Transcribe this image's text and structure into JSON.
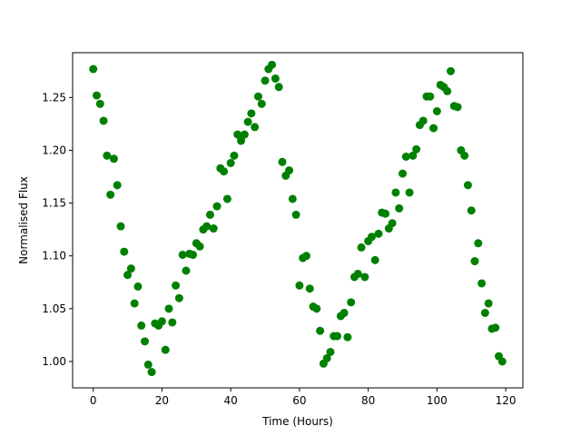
{
  "chart_data": {
    "type": "scatter",
    "title": "",
    "xlabel": "Time (Hours)",
    "ylabel": "Normalised Flux",
    "xlim": [
      -6,
      125
    ],
    "ylim": [
      0.975,
      1.2925
    ],
    "x_ticks": [
      0,
      20,
      40,
      60,
      80,
      100,
      120
    ],
    "x_tick_labels": [
      "0",
      "20",
      "40",
      "60",
      "80",
      "100",
      "120"
    ],
    "y_ticks": [
      1.0,
      1.05,
      1.1,
      1.15,
      1.2,
      1.25
    ],
    "y_tick_labels": [
      "1.00",
      "1.05",
      "1.10",
      "1.15",
      "1.20",
      "1.25"
    ],
    "grid": false,
    "legend": false,
    "marker_color": "#008000",
    "series": [
      {
        "points": [
          [
            0,
            1.277
          ],
          [
            1,
            1.252
          ],
          [
            2,
            1.244
          ],
          [
            3,
            1.228
          ],
          [
            4,
            1.195
          ],
          [
            5,
            1.158
          ],
          [
            6,
            1.192
          ],
          [
            7,
            1.167
          ],
          [
            8,
            1.128
          ],
          [
            9,
            1.104
          ],
          [
            10,
            1.082
          ],
          [
            11,
            1.088
          ],
          [
            12,
            1.055
          ],
          [
            13,
            1.071
          ],
          [
            14,
            1.034
          ],
          [
            15,
            1.019
          ],
          [
            16,
            0.997
          ],
          [
            17,
            0.99
          ],
          [
            18,
            1.036
          ],
          [
            19,
            1.034
          ],
          [
            20,
            1.038
          ],
          [
            21,
            1.011
          ],
          [
            22,
            1.05
          ],
          [
            23,
            1.037
          ],
          [
            24,
            1.072
          ],
          [
            25,
            1.06
          ],
          [
            26,
            1.101
          ],
          [
            27,
            1.086
          ],
          [
            28,
            1.102
          ],
          [
            29,
            1.101
          ],
          [
            30,
            1.112
          ],
          [
            31,
            1.109
          ],
          [
            32,
            1.125
          ],
          [
            33,
            1.128
          ],
          [
            34,
            1.139
          ],
          [
            35,
            1.126
          ],
          [
            36,
            1.147
          ],
          [
            37,
            1.183
          ],
          [
            38,
            1.18
          ],
          [
            39,
            1.154
          ],
          [
            40,
            1.188
          ],
          [
            41,
            1.195
          ],
          [
            42,
            1.215
          ],
          [
            43,
            1.209
          ],
          [
            44,
            1.215
          ],
          [
            45,
            1.227
          ],
          [
            46,
            1.235
          ],
          [
            47,
            1.222
          ],
          [
            48,
            1.251
          ],
          [
            49,
            1.244
          ],
          [
            50,
            1.266
          ],
          [
            51,
            1.277
          ],
          [
            52,
            1.281
          ],
          [
            53,
            1.268
          ],
          [
            54,
            1.26
          ],
          [
            55,
            1.189
          ],
          [
            56,
            1.176
          ],
          [
            57,
            1.181
          ],
          [
            58,
            1.154
          ],
          [
            59,
            1.139
          ],
          [
            60,
            1.072
          ],
          [
            61,
            1.098
          ],
          [
            62,
            1.1
          ],
          [
            63,
            1.069
          ],
          [
            64,
            1.052
          ],
          [
            65,
            1.05
          ],
          [
            66,
            1.029
          ],
          [
            67,
            0.998
          ],
          [
            68,
            1.003
          ],
          [
            69,
            1.009
          ],
          [
            70,
            1.024
          ],
          [
            71,
            1.024
          ],
          [
            72,
            1.043
          ],
          [
            73,
            1.046
          ],
          [
            74,
            1.023
          ],
          [
            75,
            1.056
          ],
          [
            76,
            1.08
          ],
          [
            77,
            1.083
          ],
          [
            78,
            1.108
          ],
          [
            79,
            1.08
          ],
          [
            80,
            1.114
          ],
          [
            81,
            1.118
          ],
          [
            82,
            1.096
          ],
          [
            83,
            1.121
          ],
          [
            84,
            1.141
          ],
          [
            85,
            1.14
          ],
          [
            86,
            1.126
          ],
          [
            87,
            1.131
          ],
          [
            88,
            1.16
          ],
          [
            89,
            1.145
          ],
          [
            90,
            1.178
          ],
          [
            91,
            1.194
          ],
          [
            92,
            1.16
          ],
          [
            93,
            1.195
          ],
          [
            94,
            1.201
          ],
          [
            95,
            1.224
          ],
          [
            96,
            1.228
          ],
          [
            97,
            1.251
          ],
          [
            98,
            1.251
          ],
          [
            99,
            1.221
          ],
          [
            100,
            1.237
          ],
          [
            101,
            1.262
          ],
          [
            102,
            1.26
          ],
          [
            103,
            1.256
          ],
          [
            104,
            1.275
          ],
          [
            105,
            1.242
          ],
          [
            106,
            1.241
          ],
          [
            107,
            1.2
          ],
          [
            108,
            1.195
          ],
          [
            109,
            1.167
          ],
          [
            110,
            1.143
          ],
          [
            111,
            1.095
          ],
          [
            112,
            1.112
          ],
          [
            113,
            1.074
          ],
          [
            114,
            1.046
          ],
          [
            115,
            1.055
          ],
          [
            116,
            1.031
          ],
          [
            117,
            1.032
          ],
          [
            118,
            1.005
          ],
          [
            119,
            1.0
          ]
        ]
      }
    ]
  }
}
